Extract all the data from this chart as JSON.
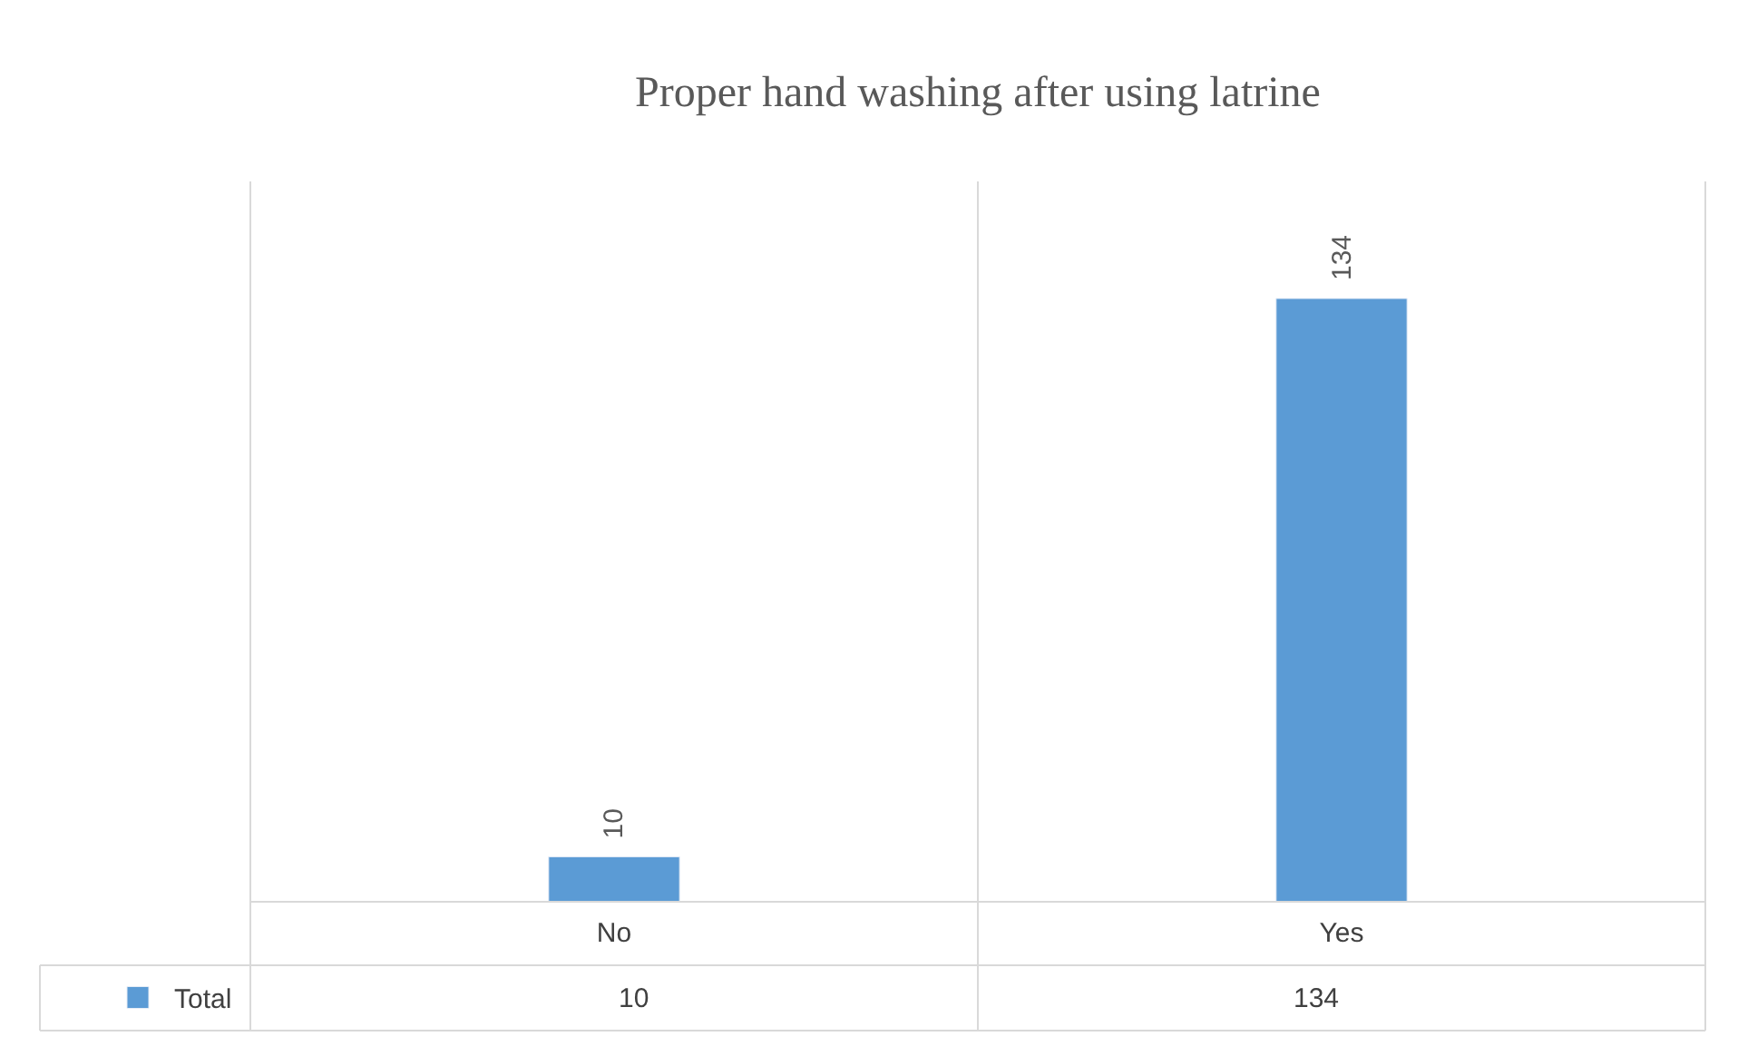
{
  "chart_data": {
    "type": "bar",
    "title": "Proper hand washing after using latrine",
    "categories": [
      "No",
      "Yes"
    ],
    "series": [
      {
        "name": "Total",
        "color": "#5b9bd5",
        "values": [
          10,
          134
        ],
        "value_labels": [
          "10",
          "134"
        ]
      }
    ],
    "ylim": [
      0,
      160
    ],
    "grid": "x",
    "legend": "bottom left",
    "annotations": [
      "10",
      "134"
    ]
  }
}
